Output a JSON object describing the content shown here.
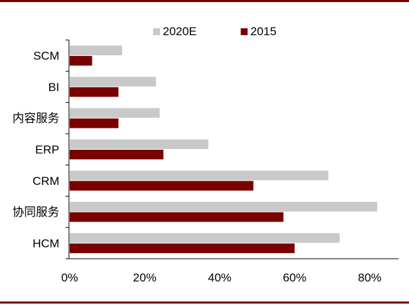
{
  "colors": {
    "frame_rule": "#7a0000",
    "series_2020E": "#c9c9c9",
    "series_2015": "#7a0000",
    "axis": "#000000",
    "text": "#000000"
  },
  "chart_data": {
    "type": "bar",
    "orientation": "horizontal",
    "title": "",
    "xlabel": "",
    "ylabel": "",
    "categories": [
      "SCM",
      "BI",
      "内容服务",
      "ERP",
      "CRM",
      "协同服务",
      "HCM"
    ],
    "series": [
      {
        "name": "2020E",
        "color": "#c9c9c9",
        "values": [
          0.14,
          0.23,
          0.24,
          0.37,
          0.69,
          0.82,
          0.72
        ]
      },
      {
        "name": "2015",
        "color": "#7a0000",
        "values": [
          0.06,
          0.13,
          0.13,
          0.25,
          0.49,
          0.57,
          0.6
        ]
      }
    ],
    "xlim": [
      0,
      0.8
    ],
    "xticks": [
      {
        "value": 0,
        "label": "0%"
      },
      {
        "value": 0.2,
        "label": "20%"
      },
      {
        "value": 0.4,
        "label": "40%"
      },
      {
        "value": 0.6,
        "label": "60%"
      },
      {
        "value": 0.8,
        "label": "80%"
      }
    ],
    "grid": false,
    "legend": {
      "placement": "top",
      "entries": [
        "2020E",
        "2015"
      ]
    }
  }
}
